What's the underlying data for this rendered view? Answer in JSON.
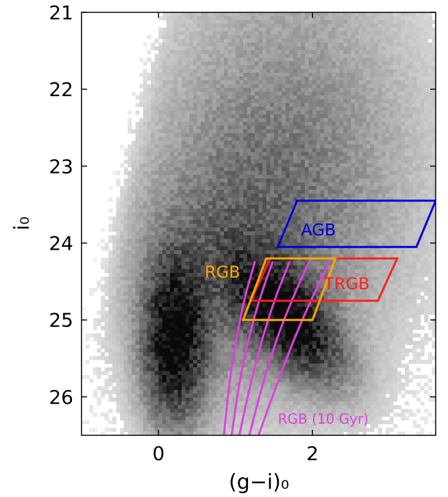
{
  "chart_data": {
    "type": "heatmap",
    "title": "",
    "xlabel": "(g−i)₀",
    "ylabel": "i₀",
    "xlim": [
      -1.0,
      3.6
    ],
    "ylim": [
      26.5,
      21.0
    ],
    "y_inverted": true,
    "x_ticks": [
      0,
      2
    ],
    "x_tick_labels": [
      "0",
      "2"
    ],
    "y_ticks": [
      21,
      22,
      23,
      24,
      25,
      26
    ],
    "y_tick_labels": [
      "21",
      "22",
      "23",
      "24",
      "25",
      "26"
    ],
    "grid": false,
    "density_description": "2D histogram of star counts (grayscale, darker = more stars)",
    "density_peaks": [
      {
        "x": 0.2,
        "y": 25.4,
        "relative_density": 1.0
      },
      {
        "x": 1.8,
        "y": 25.0,
        "relative_density": 0.95
      }
    ],
    "selection_boxes": [
      {
        "name": "AGB",
        "color": "#0000e0",
        "vertices": [
          [
            1.55,
            24.05
          ],
          [
            1.8,
            23.45
          ],
          [
            3.6,
            23.45
          ],
          [
            3.35,
            24.05
          ]
        ],
        "label_position": [
          1.85,
          23.9
        ]
      },
      {
        "name": "TRGB",
        "color": "#ff2020",
        "vertices": [
          [
            1.2,
            24.75
          ],
          [
            1.45,
            24.2
          ],
          [
            3.1,
            24.2
          ],
          [
            2.85,
            24.75
          ]
        ],
        "label_position": [
          2.15,
          24.6
        ]
      },
      {
        "name": "RGB",
        "color": "#ffa500",
        "vertices": [
          [
            1.1,
            25.0
          ],
          [
            1.4,
            24.2
          ],
          [
            2.3,
            24.2
          ],
          [
            2.0,
            25.0
          ]
        ],
        "label_position": [
          0.6,
          24.45
        ]
      }
    ],
    "isochrones": {
      "label": "RGB (10 Gyr)",
      "color": "#e040e0",
      "label_position": [
        1.55,
        26.35
      ],
      "curves": [
        [
          [
            0.85,
            26.5
          ],
          [
            0.92,
            25.8
          ],
          [
            1.02,
            25.2
          ],
          [
            1.12,
            24.7
          ],
          [
            1.25,
            24.25
          ]
        ],
        [
          [
            0.95,
            26.5
          ],
          [
            1.05,
            25.8
          ],
          [
            1.18,
            25.2
          ],
          [
            1.32,
            24.7
          ],
          [
            1.48,
            24.25
          ]
        ],
        [
          [
            1.05,
            26.5
          ],
          [
            1.2,
            25.8
          ],
          [
            1.36,
            25.2
          ],
          [
            1.52,
            24.7
          ],
          [
            1.7,
            24.25
          ]
        ],
        [
          [
            1.18,
            26.5
          ],
          [
            1.36,
            25.8
          ],
          [
            1.55,
            25.2
          ],
          [
            1.75,
            24.7
          ],
          [
            1.95,
            24.25
          ]
        ],
        [
          [
            1.3,
            26.5
          ],
          [
            1.55,
            25.8
          ],
          [
            1.78,
            25.2
          ],
          [
            2.0,
            24.7
          ],
          [
            2.22,
            24.25
          ]
        ]
      ]
    }
  }
}
